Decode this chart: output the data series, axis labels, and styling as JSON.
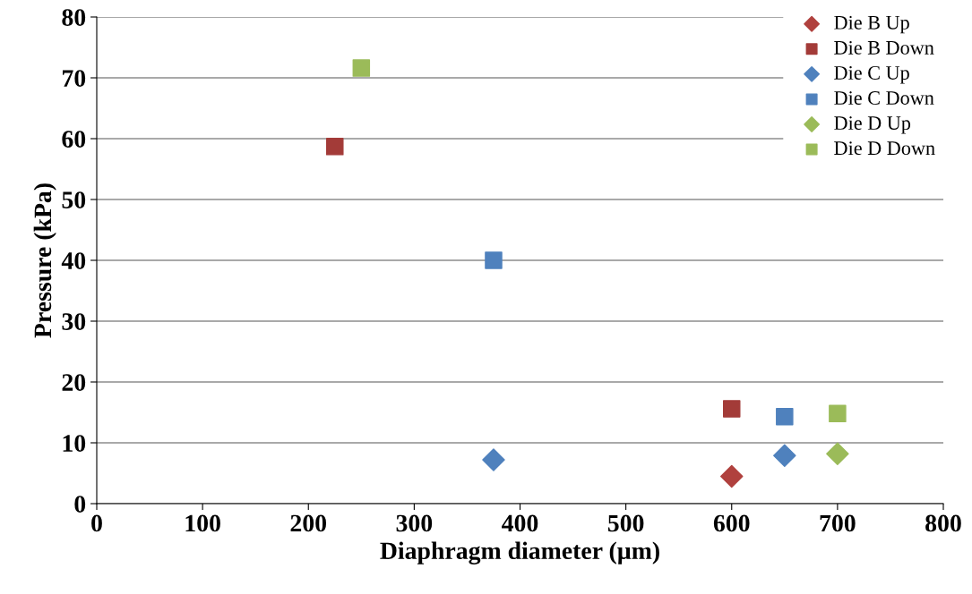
{
  "chart_data": {
    "type": "scatter",
    "xlabel": "Diaphragm diameter (µm)",
    "ylabel": "Pressure (kPa)",
    "xlim": [
      0,
      800
    ],
    "xticks": [
      0,
      100,
      200,
      300,
      400,
      500,
      600,
      700,
      800
    ],
    "ylim": [
      0,
      80
    ],
    "yticks": [
      0,
      10,
      20,
      30,
      40,
      50,
      60,
      70,
      80
    ],
    "grid": "y",
    "legend": "top right",
    "series": [
      {
        "name": "Die B Up",
        "color": "#b0413e",
        "marker": "diamond",
        "x": [
          600
        ],
        "values": [
          4.5
        ]
      },
      {
        "name": "Die B Down",
        "color": "#a33b38",
        "marker": "square",
        "x": [
          225,
          600
        ],
        "values": [
          58.7,
          15.6
        ]
      },
      {
        "name": "Die C Up",
        "color": "#4f81bd",
        "marker": "diamond",
        "x": [
          375,
          650
        ],
        "values": [
          7.2,
          7.9
        ]
      },
      {
        "name": "Die C Down",
        "color": "#4f81bd",
        "marker": "square",
        "x": [
          375,
          650
        ],
        "values": [
          40,
          14.3
        ]
      },
      {
        "name": "Die D Up",
        "color": "#9bbb59",
        "marker": "diamond",
        "x": [
          700
        ],
        "values": [
          8.2
        ]
      },
      {
        "name": "Die D Down",
        "color": "#9bbb59",
        "marker": "square",
        "x": [
          250,
          700
        ],
        "values": [
          71.6,
          14.8
        ]
      }
    ]
  }
}
